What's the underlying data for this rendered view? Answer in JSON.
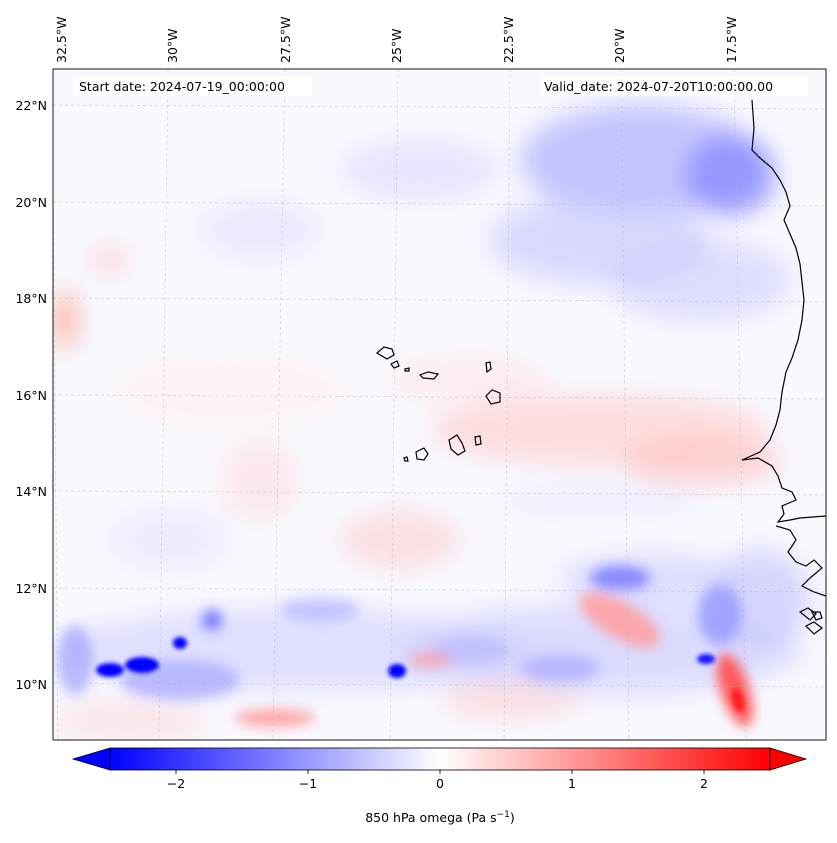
{
  "header": {
    "start_date_label": "Start date: 2024-07-19_00:00:00",
    "valid_date_label": "Valid_date: 2024-07-20T10:00:00.00"
  },
  "map": {
    "lon_labels": [
      "32.5°W",
      "30°W",
      "27.5°W",
      "25°W",
      "22.5°W",
      "20°W",
      "17.5°W"
    ],
    "lat_labels": [
      "22°N",
      "20°N",
      "18°N",
      "16°N",
      "14°N",
      "12°N",
      "10°N"
    ],
    "variable": "850 hPa omega",
    "colormap": "bwr",
    "negative_color": "#0000ff",
    "neutral_color": "#ffffff",
    "positive_color": "#ff0000",
    "coastline_color": "#000000",
    "gridlines": true
  },
  "colorbar": {
    "ticks": [
      "−2",
      "−1",
      "0",
      "1",
      "2"
    ],
    "tick_values": [
      -2,
      -1,
      0,
      1,
      2
    ],
    "range": [
      -2.5,
      2.5
    ],
    "label": "850 hPa omega (Pa s",
    "label_exponent": "−1",
    "label_suffix": ")"
  }
}
